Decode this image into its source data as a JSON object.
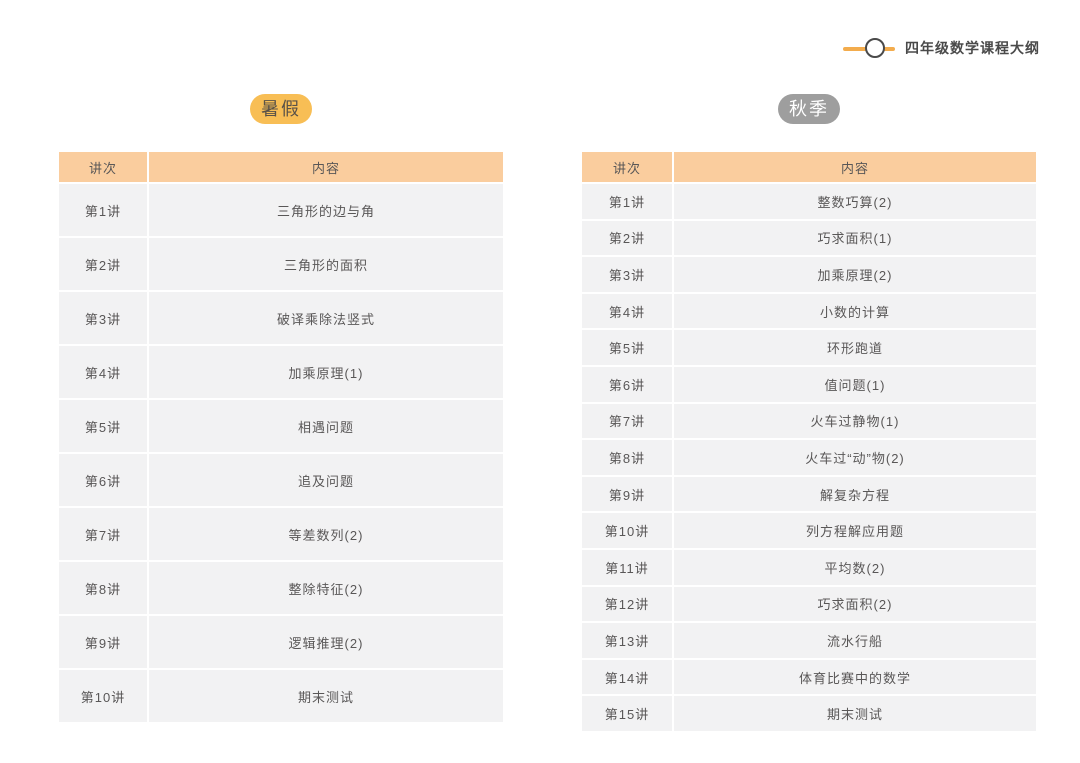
{
  "logo": {
    "title": "四年级数学课程大纲"
  },
  "colors": {
    "accent_line_orange": "#F3AC4D",
    "badge_orange": "#F8BE55",
    "badge_gray": "#9E9E9E",
    "table_header_peach": "#FACD9E",
    "table_row_gray": "#F2F2F3",
    "text_gray": "#595757",
    "logo_text_gray": "#4A4A4A"
  },
  "summer": {
    "badge_label": "暑假",
    "columns": [
      "讲次",
      "内容"
    ],
    "rows": [
      {
        "lecture": "第1讲",
        "content": "三角形的边与角"
      },
      {
        "lecture": "第2讲",
        "content": "三角形的面积"
      },
      {
        "lecture": "第3讲",
        "content": "破译乘除法竖式"
      },
      {
        "lecture": "第4讲",
        "content": "加乘原理(1)"
      },
      {
        "lecture": "第5讲",
        "content": "相遇问题"
      },
      {
        "lecture": "第6讲",
        "content": "追及问题"
      },
      {
        "lecture": "第7讲",
        "content": "等差数列(2)"
      },
      {
        "lecture": "第8讲",
        "content": "整除特征(2)"
      },
      {
        "lecture": "第9讲",
        "content": "逻辑推理(2)"
      },
      {
        "lecture": "第10讲",
        "content": "期末测试"
      }
    ]
  },
  "autumn": {
    "badge_label": "秋季",
    "columns": [
      "讲次",
      "内容"
    ],
    "rows": [
      {
        "lecture": "第1讲",
        "content": "整数巧算(2)"
      },
      {
        "lecture": "第2讲",
        "content": "巧求面积(1)"
      },
      {
        "lecture": "第3讲",
        "content": "加乘原理(2)"
      },
      {
        "lecture": "第4讲",
        "content": "小数的计算"
      },
      {
        "lecture": "第5讲",
        "content": "环形跑道"
      },
      {
        "lecture": "第6讲",
        "content": "值问题(1)"
      },
      {
        "lecture": "第7讲",
        "content": "火车过静物(1)"
      },
      {
        "lecture": "第8讲",
        "content": "火车过“动”物(2)"
      },
      {
        "lecture": "第9讲",
        "content": "解复杂方程"
      },
      {
        "lecture": "第10讲",
        "content": "列方程解应用题"
      },
      {
        "lecture": "第11讲",
        "content": "平均数(2)"
      },
      {
        "lecture": "第12讲",
        "content": "巧求面积(2)"
      },
      {
        "lecture": "第13讲",
        "content": "流水行船"
      },
      {
        "lecture": "第14讲",
        "content": "体育比赛中的数学"
      },
      {
        "lecture": "第15讲",
        "content": "期末测试"
      }
    ]
  }
}
